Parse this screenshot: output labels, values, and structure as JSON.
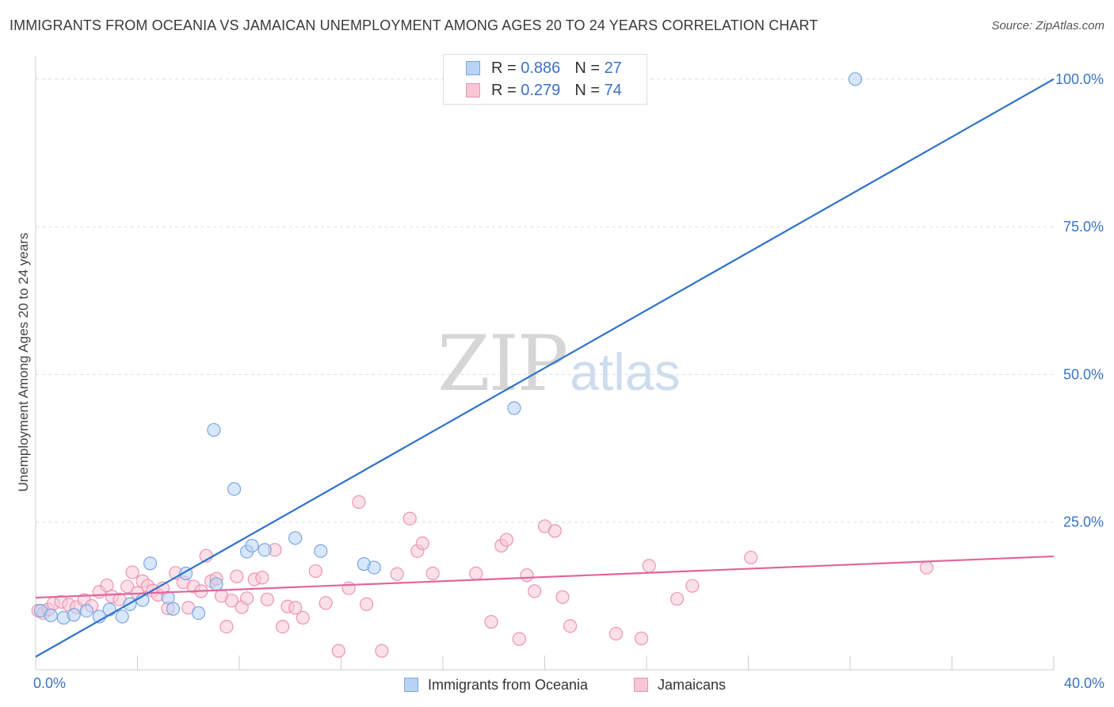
{
  "title": "IMMIGRANTS FROM OCEANIA VS JAMAICAN UNEMPLOYMENT AMONG AGES 20 TO 24 YEARS CORRELATION CHART",
  "source": "Source: ZipAtlas.com",
  "watermark": {
    "zip": "ZIP",
    "atlas": "atlas"
  },
  "legend": {
    "items": [
      {
        "r_label": "R =",
        "r_value": "0.886",
        "n_label": "N =",
        "n_value": "27"
      },
      {
        "r_label": "R =",
        "r_value": "0.279",
        "n_label": "N =",
        "n_value": "74"
      }
    ]
  },
  "colors": {
    "blue_fill": "#b8d3f5",
    "blue_stroke": "#7aa7e0",
    "blue_line": "#2f72cc",
    "pink_fill": "#f8c6d6",
    "pink_stroke": "#eb94b2",
    "pink_line": "#e0669a",
    "grid": "#dddddd",
    "tick_text": "#3a72c4"
  },
  "chart_data": {
    "type": "scatter",
    "title": "IMMIGRANTS FROM OCEANIA VS JAMAICAN UNEMPLOYMENT AMONG AGES 20 TO 24 YEARS CORRELATION CHART",
    "xlabel": "",
    "ylabel": "Unemployment Among Ages 20 to 24 years",
    "xlim": [
      0,
      40
    ],
    "ylim": [
      0,
      104
    ],
    "x_tick_labels": [
      "0.0%",
      "40.0%"
    ],
    "y_ticks": [
      25,
      50,
      75,
      100
    ],
    "y_tick_labels": [
      "25.0%",
      "50.0%",
      "75.0%",
      "100.0%"
    ],
    "grid": true,
    "series": [
      {
        "name": "Immigrants from Oceania",
        "color": "blue",
        "R": 0.886,
        "N": 27,
        "trend": {
          "x": [
            0,
            40
          ],
          "y": [
            2.2,
            100
          ]
        },
        "points": [
          {
            "x": 0.2,
            "y": 10.0
          },
          {
            "x": 0.6,
            "y": 9.2
          },
          {
            "x": 1.1,
            "y": 8.8
          },
          {
            "x": 1.5,
            "y": 9.3
          },
          {
            "x": 2.0,
            "y": 10.0
          },
          {
            "x": 2.5,
            "y": 9.0
          },
          {
            "x": 2.9,
            "y": 10.2
          },
          {
            "x": 3.4,
            "y": 9.0
          },
          {
            "x": 3.7,
            "y": 11.1
          },
          {
            "x": 4.2,
            "y": 11.8
          },
          {
            "x": 4.5,
            "y": 18.0
          },
          {
            "x": 5.2,
            "y": 12.2
          },
          {
            "x": 5.4,
            "y": 10.3
          },
          {
            "x": 5.9,
            "y": 16.3
          },
          {
            "x": 6.4,
            "y": 9.6
          },
          {
            "x": 7.0,
            "y": 40.6
          },
          {
            "x": 7.1,
            "y": 14.5
          },
          {
            "x": 7.8,
            "y": 30.6
          },
          {
            "x": 8.3,
            "y": 20.0
          },
          {
            "x": 8.5,
            "y": 21.0
          },
          {
            "x": 9.0,
            "y": 20.3
          },
          {
            "x": 10.2,
            "y": 22.3
          },
          {
            "x": 11.2,
            "y": 20.1
          },
          {
            "x": 12.9,
            "y": 17.9
          },
          {
            "x": 13.3,
            "y": 17.3
          },
          {
            "x": 18.8,
            "y": 44.3
          },
          {
            "x": 32.2,
            "y": 100.0
          }
        ]
      },
      {
        "name": "Jamaicans",
        "color": "pink",
        "R": 0.279,
        "N": 74,
        "trend": {
          "x": [
            0,
            40
          ],
          "y": [
            12.2,
            19.2
          ]
        },
        "points": [
          {
            "x": 0.1,
            "y": 10.0
          },
          {
            "x": 0.3,
            "y": 9.6
          },
          {
            "x": 0.5,
            "y": 10.2
          },
          {
            "x": 0.7,
            "y": 11.2
          },
          {
            "x": 1.0,
            "y": 11.5
          },
          {
            "x": 1.3,
            "y": 11.0
          },
          {
            "x": 1.6,
            "y": 10.6
          },
          {
            "x": 1.9,
            "y": 11.8
          },
          {
            "x": 2.2,
            "y": 10.8
          },
          {
            "x": 2.5,
            "y": 13.2
          },
          {
            "x": 2.8,
            "y": 14.3
          },
          {
            "x": 3.0,
            "y": 12.4
          },
          {
            "x": 3.3,
            "y": 11.9
          },
          {
            "x": 3.6,
            "y": 14.1
          },
          {
            "x": 3.8,
            "y": 16.5
          },
          {
            "x": 4.0,
            "y": 13.0
          },
          {
            "x": 4.2,
            "y": 15.0
          },
          {
            "x": 4.4,
            "y": 14.2
          },
          {
            "x": 4.6,
            "y": 13.4
          },
          {
            "x": 4.8,
            "y": 12.7
          },
          {
            "x": 5.0,
            "y": 13.8
          },
          {
            "x": 5.2,
            "y": 10.4
          },
          {
            "x": 5.5,
            "y": 16.4
          },
          {
            "x": 5.8,
            "y": 14.8
          },
          {
            "x": 6.0,
            "y": 10.5
          },
          {
            "x": 6.2,
            "y": 14.1
          },
          {
            "x": 6.5,
            "y": 13.3
          },
          {
            "x": 6.7,
            "y": 19.3
          },
          {
            "x": 6.9,
            "y": 15.0
          },
          {
            "x": 7.1,
            "y": 15.4
          },
          {
            "x": 7.3,
            "y": 12.5
          },
          {
            "x": 7.5,
            "y": 7.3
          },
          {
            "x": 7.7,
            "y": 11.7
          },
          {
            "x": 7.9,
            "y": 15.8
          },
          {
            "x": 8.1,
            "y": 10.6
          },
          {
            "x": 8.3,
            "y": 12.1
          },
          {
            "x": 8.6,
            "y": 15.3
          },
          {
            "x": 8.9,
            "y": 15.6
          },
          {
            "x": 9.1,
            "y": 11.9
          },
          {
            "x": 9.4,
            "y": 20.3
          },
          {
            "x": 9.7,
            "y": 7.3
          },
          {
            "x": 9.9,
            "y": 10.7
          },
          {
            "x": 10.2,
            "y": 10.5
          },
          {
            "x": 10.5,
            "y": 8.8
          },
          {
            "x": 11.0,
            "y": 16.7
          },
          {
            "x": 11.4,
            "y": 11.3
          },
          {
            "x": 11.9,
            "y": 3.2
          },
          {
            "x": 12.3,
            "y": 13.8
          },
          {
            "x": 12.7,
            "y": 28.4
          },
          {
            "x": 13.0,
            "y": 11.1
          },
          {
            "x": 13.6,
            "y": 3.2
          },
          {
            "x": 14.2,
            "y": 16.2
          },
          {
            "x": 14.7,
            "y": 25.6
          },
          {
            "x": 15.0,
            "y": 20.1
          },
          {
            "x": 15.2,
            "y": 21.4
          },
          {
            "x": 15.6,
            "y": 16.3
          },
          {
            "x": 17.3,
            "y": 16.3
          },
          {
            "x": 17.9,
            "y": 8.1
          },
          {
            "x": 18.3,
            "y": 21.0
          },
          {
            "x": 18.5,
            "y": 22.0
          },
          {
            "x": 19.0,
            "y": 5.2
          },
          {
            "x": 19.3,
            "y": 16.0
          },
          {
            "x": 19.6,
            "y": 13.3
          },
          {
            "x": 20.0,
            "y": 24.3
          },
          {
            "x": 20.4,
            "y": 23.5
          },
          {
            "x": 20.7,
            "y": 12.3
          },
          {
            "x": 21.0,
            "y": 7.4
          },
          {
            "x": 22.8,
            "y": 6.1
          },
          {
            "x": 23.8,
            "y": 5.3
          },
          {
            "x": 24.1,
            "y": 17.6
          },
          {
            "x": 25.2,
            "y": 12.0
          },
          {
            "x": 25.8,
            "y": 14.2
          },
          {
            "x": 28.1,
            "y": 19.0
          },
          {
            "x": 35.0,
            "y": 17.3
          }
        ]
      }
    ]
  },
  "bottom_legend": [
    "Immigrants from Oceania",
    "Jamaicans"
  ]
}
